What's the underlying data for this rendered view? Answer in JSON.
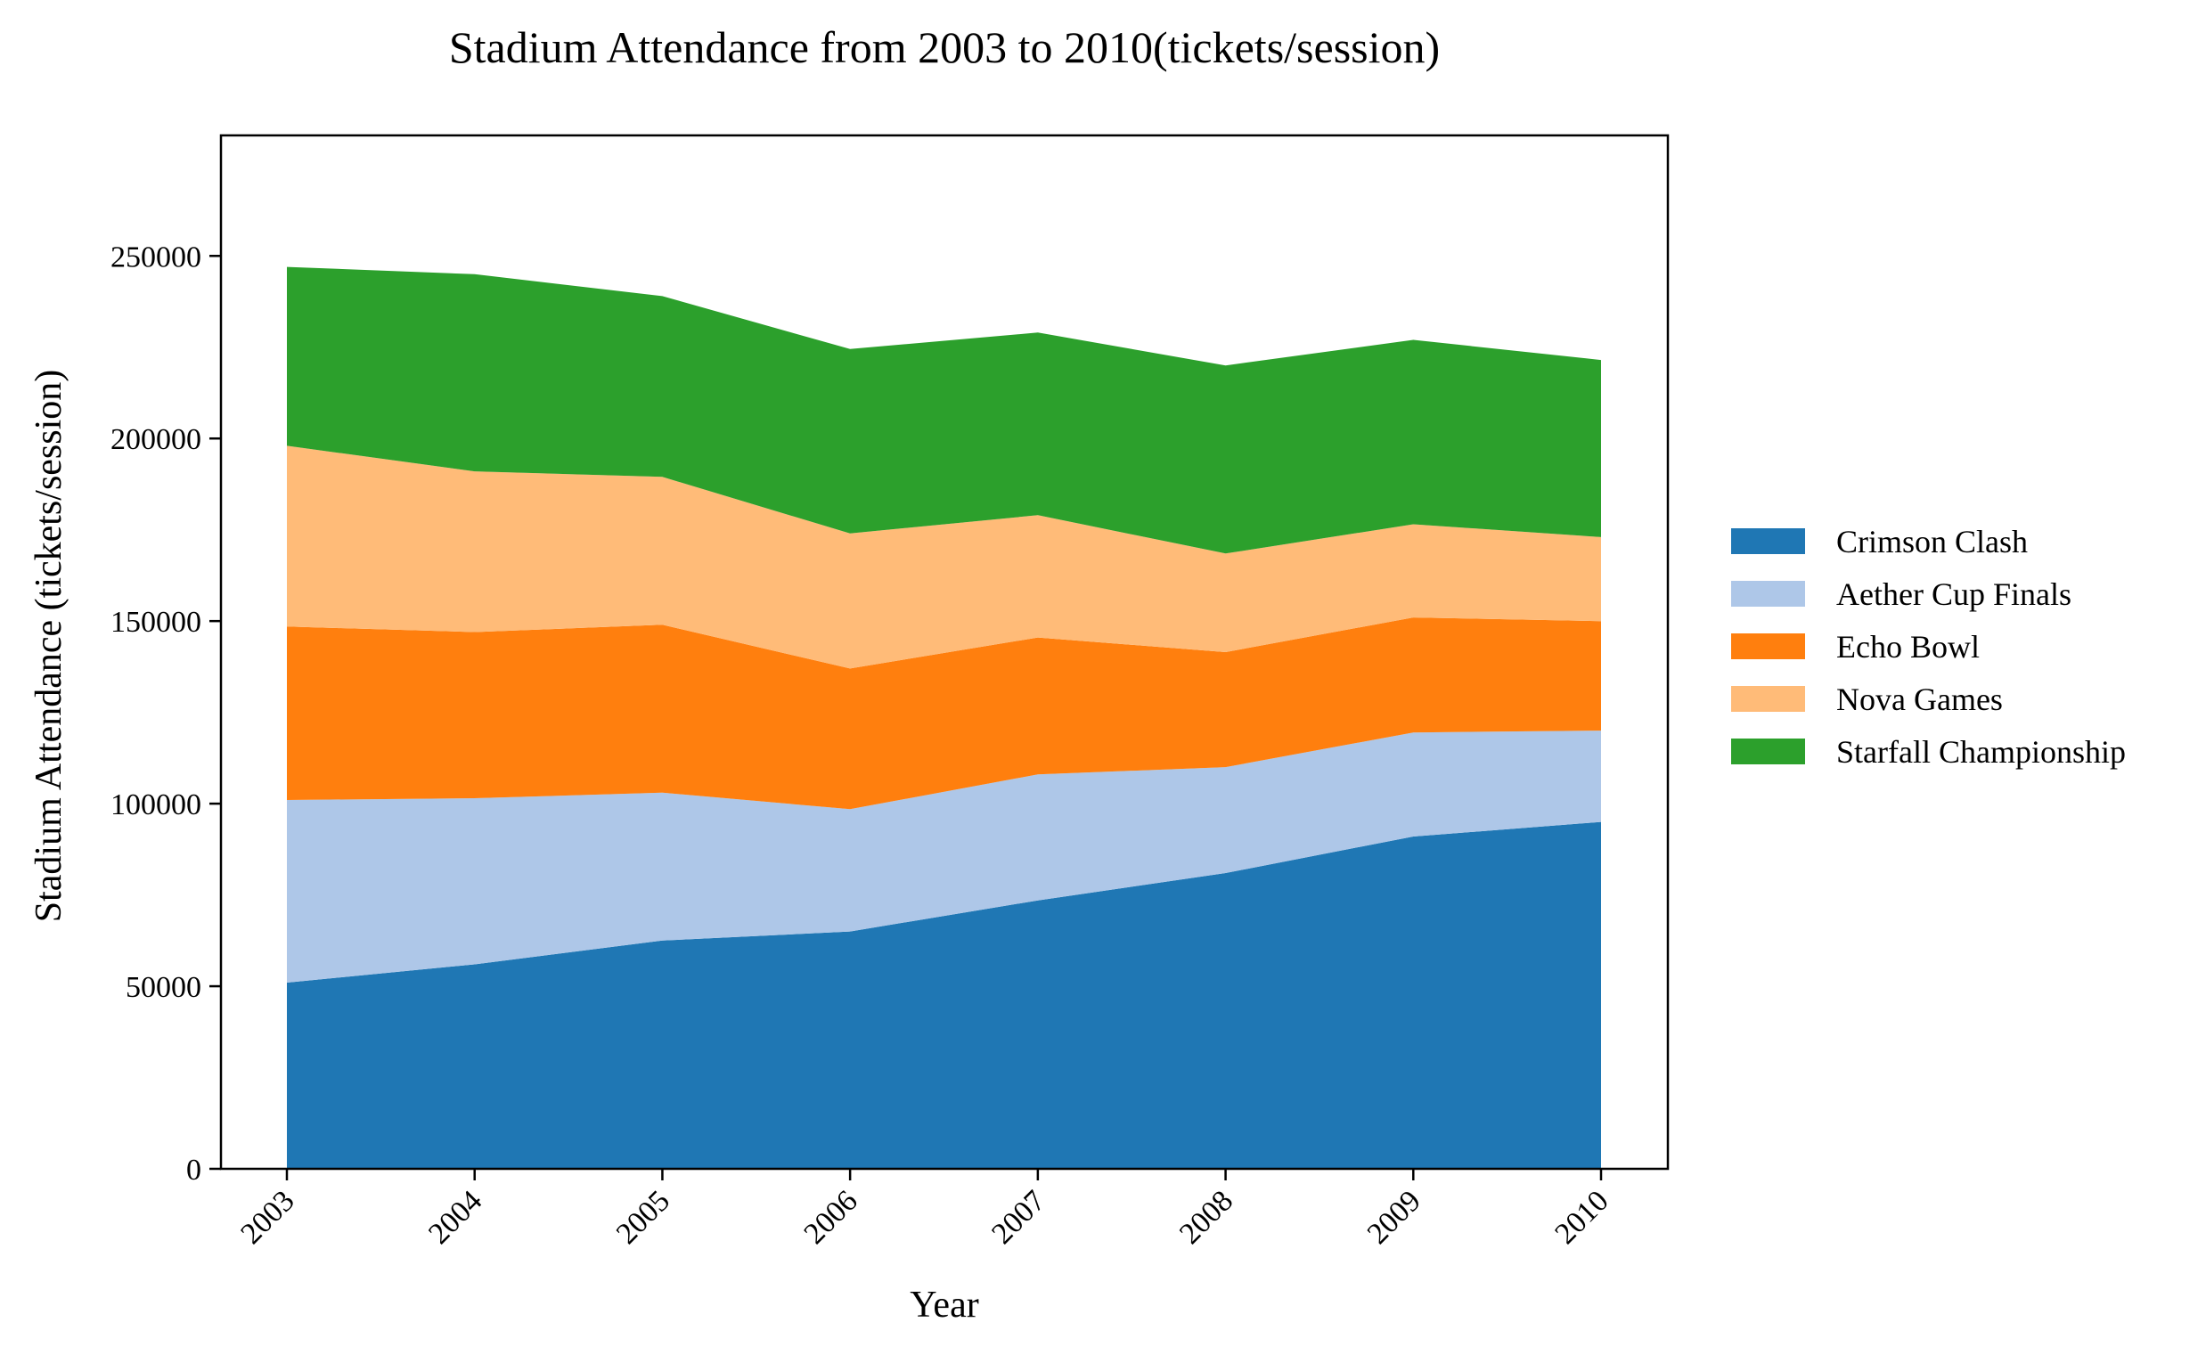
{
  "chart_data": {
    "type": "area",
    "stacked": true,
    "title": "Stadium Attendance from 2003 to 2010(tickets/session)",
    "xlabel": "Year",
    "ylabel": "Stadium Attendance (tickets/session)",
    "categories": [
      "2003",
      "2004",
      "2005",
      "2006",
      "2007",
      "2008",
      "2009",
      "2010"
    ],
    "ylim": [
      0,
      283000
    ],
    "yticks": [
      0,
      50000,
      100000,
      150000,
      200000,
      250000
    ],
    "grid": false,
    "legend_position": "right",
    "series": [
      {
        "name": "Crimson Clash",
        "color": "#1f77b4",
        "values": [
          51000,
          56000,
          62500,
          65000,
          73500,
          81000,
          91000,
          95000
        ]
      },
      {
        "name": "Aether Cup Finals",
        "color": "#aec7e8",
        "values": [
          50000,
          45500,
          40500,
          33500,
          34500,
          29000,
          28500,
          25000
        ]
      },
      {
        "name": "Echo Bowl",
        "color": "#ff7f0e",
        "values": [
          47500,
          45500,
          46000,
          38500,
          37500,
          31500,
          31500,
          30000
        ]
      },
      {
        "name": "Nova Games",
        "color": "#ffbb78",
        "values": [
          49500,
          44000,
          40500,
          37000,
          33500,
          27000,
          25500,
          23000
        ]
      },
      {
        "name": "Starfall Championship",
        "color": "#2ca02c",
        "values": [
          49000,
          54000,
          49500,
          50500,
          50000,
          51500,
          50500,
          48500
        ]
      }
    ]
  }
}
